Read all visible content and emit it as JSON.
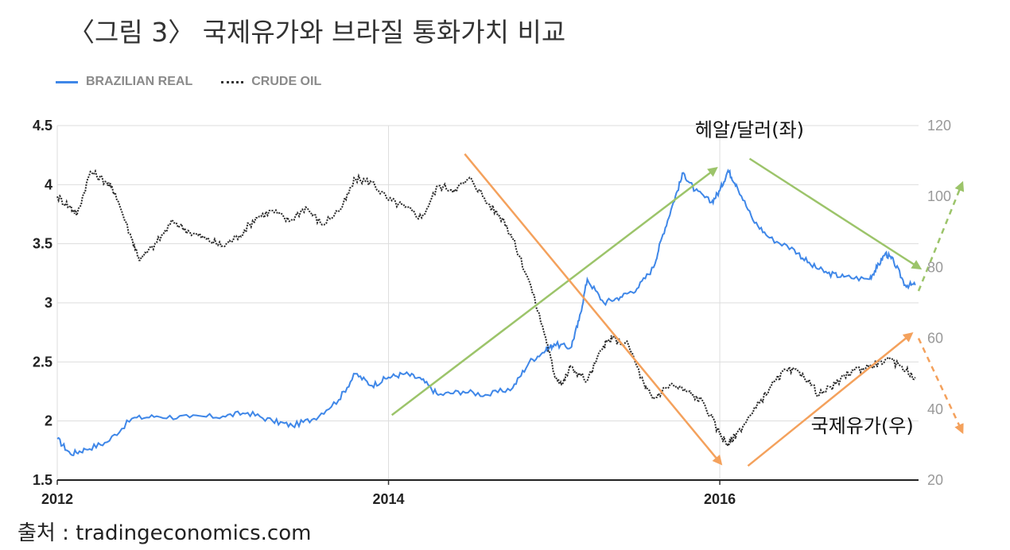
{
  "title": "〈그림 3〉 국제유가와 브라질 통화가치 비교",
  "source": "출처 : tradingeconomics.com",
  "colors": {
    "real": "#3f87e8",
    "oil": "#2b2b2b",
    "green_arrow": "#9cc46a",
    "orange_arrow": "#f4a15c",
    "grid": "#dddddd"
  },
  "chart_data": {
    "type": "line",
    "legend": [
      "BRAZILIAN REAL",
      "CRUDE OIL"
    ],
    "legend_position": "top-left",
    "grid": true,
    "x_ticks": [
      "2012",
      "2014",
      "2016"
    ],
    "y_left_ticks": [
      "4.5",
      "4",
      "3.5",
      "3",
      "2.5",
      "2",
      "1.5"
    ],
    "y_right_ticks": [
      "120",
      "100",
      "80",
      "60",
      "40",
      "20"
    ],
    "y_left_range": [
      1.5,
      4.5
    ],
    "y_right_range": [
      20,
      120
    ],
    "x_range": [
      2012.0,
      2017.2
    ],
    "series": [
      {
        "name": "BRAZILIAN REAL",
        "axis": "left",
        "points": [
          [
            2012.0,
            1.85
          ],
          [
            2012.08,
            1.72
          ],
          [
            2012.17,
            1.76
          ],
          [
            2012.3,
            1.82
          ],
          [
            2012.45,
            2.02
          ],
          [
            2012.6,
            2.04
          ],
          [
            2012.8,
            2.03
          ],
          [
            2013.0,
            2.04
          ],
          [
            2013.15,
            2.07
          ],
          [
            2013.3,
            2.0
          ],
          [
            2013.42,
            1.96
          ],
          [
            2013.55,
            2.02
          ],
          [
            2013.7,
            2.18
          ],
          [
            2013.8,
            2.4
          ],
          [
            2013.9,
            2.3
          ],
          [
            2014.0,
            2.37
          ],
          [
            2014.1,
            2.4
          ],
          [
            2014.2,
            2.35
          ],
          [
            2014.3,
            2.22
          ],
          [
            2014.45,
            2.25
          ],
          [
            2014.6,
            2.22
          ],
          [
            2014.75,
            2.28
          ],
          [
            2014.85,
            2.5
          ],
          [
            2014.95,
            2.6
          ],
          [
            2015.0,
            2.65
          ],
          [
            2015.1,
            2.62
          ],
          [
            2015.15,
            2.85
          ],
          [
            2015.2,
            3.2
          ],
          [
            2015.3,
            3.0
          ],
          [
            2015.4,
            3.05
          ],
          [
            2015.5,
            3.12
          ],
          [
            2015.6,
            3.3
          ],
          [
            2015.65,
            3.55
          ],
          [
            2015.72,
            3.85
          ],
          [
            2015.78,
            4.1
          ],
          [
            2015.85,
            3.95
          ],
          [
            2015.95,
            3.85
          ],
          [
            2016.0,
            3.95
          ],
          [
            2016.05,
            4.12
          ],
          [
            2016.1,
            4.0
          ],
          [
            2016.2,
            3.7
          ],
          [
            2016.3,
            3.55
          ],
          [
            2016.45,
            3.45
          ],
          [
            2016.55,
            3.32
          ],
          [
            2016.65,
            3.25
          ],
          [
            2016.75,
            3.22
          ],
          [
            2016.9,
            3.2
          ],
          [
            2016.95,
            3.3
          ],
          [
            2017.0,
            3.42
          ],
          [
            2017.05,
            3.35
          ],
          [
            2017.12,
            3.15
          ],
          [
            2017.18,
            3.15
          ]
        ]
      },
      {
        "name": "CRUDE OIL",
        "axis": "right",
        "points": [
          [
            2012.0,
            100
          ],
          [
            2012.08,
            97
          ],
          [
            2012.12,
            95
          ],
          [
            2012.2,
            107
          ],
          [
            2012.3,
            104
          ],
          [
            2012.35,
            101
          ],
          [
            2012.45,
            88
          ],
          [
            2012.5,
            82
          ],
          [
            2012.6,
            87
          ],
          [
            2012.7,
            93
          ],
          [
            2012.8,
            90
          ],
          [
            2012.9,
            88
          ],
          [
            2013.0,
            86
          ],
          [
            2013.1,
            89
          ],
          [
            2013.2,
            94
          ],
          [
            2013.3,
            96
          ],
          [
            2013.4,
            93
          ],
          [
            2013.5,
            97
          ],
          [
            2013.6,
            92
          ],
          [
            2013.72,
            97
          ],
          [
            2013.8,
            105
          ],
          [
            2013.9,
            104
          ],
          [
            2014.0,
            99
          ],
          [
            2014.1,
            97
          ],
          [
            2014.2,
            94
          ],
          [
            2014.3,
            103
          ],
          [
            2014.4,
            102
          ],
          [
            2014.5,
            105
          ],
          [
            2014.6,
            98
          ],
          [
            2014.7,
            93
          ],
          [
            2014.75,
            88
          ],
          [
            2014.85,
            76
          ],
          [
            2014.95,
            60
          ],
          [
            2015.0,
            50
          ],
          [
            2015.05,
            47
          ],
          [
            2015.1,
            52
          ],
          [
            2015.2,
            48
          ],
          [
            2015.3,
            58
          ],
          [
            2015.35,
            60
          ],
          [
            2015.45,
            58
          ],
          [
            2015.55,
            46
          ],
          [
            2015.6,
            43
          ],
          [
            2015.7,
            47
          ],
          [
            2015.8,
            45
          ],
          [
            2015.9,
            42
          ],
          [
            2016.0,
            33
          ],
          [
            2016.05,
            30
          ],
          [
            2016.1,
            33
          ],
          [
            2016.2,
            39
          ],
          [
            2016.3,
            46
          ],
          [
            2016.4,
            51
          ],
          [
            2016.5,
            50
          ],
          [
            2016.6,
            44
          ],
          [
            2016.7,
            47
          ],
          [
            2016.8,
            51
          ],
          [
            2016.9,
            52
          ],
          [
            2017.0,
            54
          ],
          [
            2017.1,
            52
          ],
          [
            2017.18,
            49
          ]
        ]
      }
    ],
    "annotations": [
      {
        "label": "헤알/달러(좌)"
      },
      {
        "label": "국제유가(우)"
      }
    ]
  }
}
